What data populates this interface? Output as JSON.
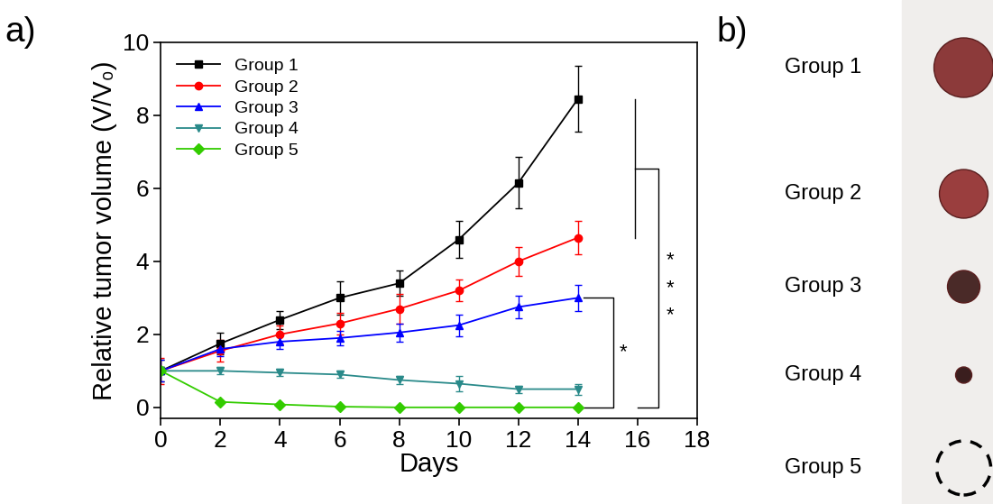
{
  "chart_data": {
    "type": "line",
    "panel_label": "a)",
    "x_label": "Days",
    "y_label": "Relative tumor volume (V/V₀)",
    "x": [
      0,
      2,
      4,
      6,
      8,
      10,
      12,
      14
    ],
    "xlim": [
      0,
      18
    ],
    "xticks": [
      0,
      2,
      4,
      6,
      8,
      10,
      12,
      14,
      16,
      18
    ],
    "ylim": [
      -0.3,
      10
    ],
    "yticks": [
      0,
      2,
      4,
      6,
      8,
      10
    ],
    "legend": "upper left",
    "series": [
      {
        "name": "Group 1",
        "color": "#000000",
        "marker": "square",
        "values": [
          1,
          1.75,
          2.4,
          3.0,
          3.4,
          4.6,
          6.15,
          8.45
        ],
        "errors": [
          0.3,
          0.3,
          0.25,
          0.45,
          0.35,
          0.5,
          0.7,
          0.9
        ]
      },
      {
        "name": "Group 2",
        "color": "#ff0000",
        "marker": "circle",
        "values": [
          1,
          1.55,
          2.0,
          2.3,
          2.7,
          3.2,
          4.0,
          4.65
        ],
        "errors": [
          0.35,
          0.3,
          0.25,
          0.3,
          0.4,
          0.3,
          0.4,
          0.45
        ]
      },
      {
        "name": "Group 3",
        "color": "#0000ff",
        "marker": "triangle_up",
        "values": [
          1,
          1.6,
          1.8,
          1.9,
          2.05,
          2.25,
          2.75,
          3.0
        ],
        "errors": [
          0.3,
          0.2,
          0.2,
          0.2,
          0.25,
          0.3,
          0.3,
          0.35
        ]
      },
      {
        "name": "Group 4",
        "color": "#2a8a8a",
        "marker": "triangle_down",
        "values": [
          1,
          1.0,
          0.95,
          0.9,
          0.75,
          0.65,
          0.5,
          0.5
        ],
        "errors": [
          0.1,
          0.1,
          0.1,
          0.1,
          0.1,
          0.2,
          0.1,
          0.15
        ]
      },
      {
        "name": "Group 5",
        "color": "#33cc00",
        "marker": "diamond",
        "values": [
          1,
          0.15,
          0.08,
          0.02,
          0,
          0,
          0,
          0
        ],
        "errors": [
          0.1,
          0.05,
          0.03,
          0.02,
          0.01,
          0.01,
          0.01,
          0.01
        ]
      }
    ],
    "annotations": [
      {
        "text": "*",
        "between": [
          [
            "Group 3"
          ],
          [
            "Group 5"
          ]
        ]
      },
      {
        "text": "***",
        "between": [
          [
            "Group 1",
            "Group 2"
          ],
          [
            "Group 5"
          ]
        ]
      }
    ]
  },
  "photo": {
    "panel_label": "b)",
    "labels": [
      "Group 1",
      "Group 2",
      "Group 3",
      "Group 4",
      "Group 5"
    ]
  }
}
